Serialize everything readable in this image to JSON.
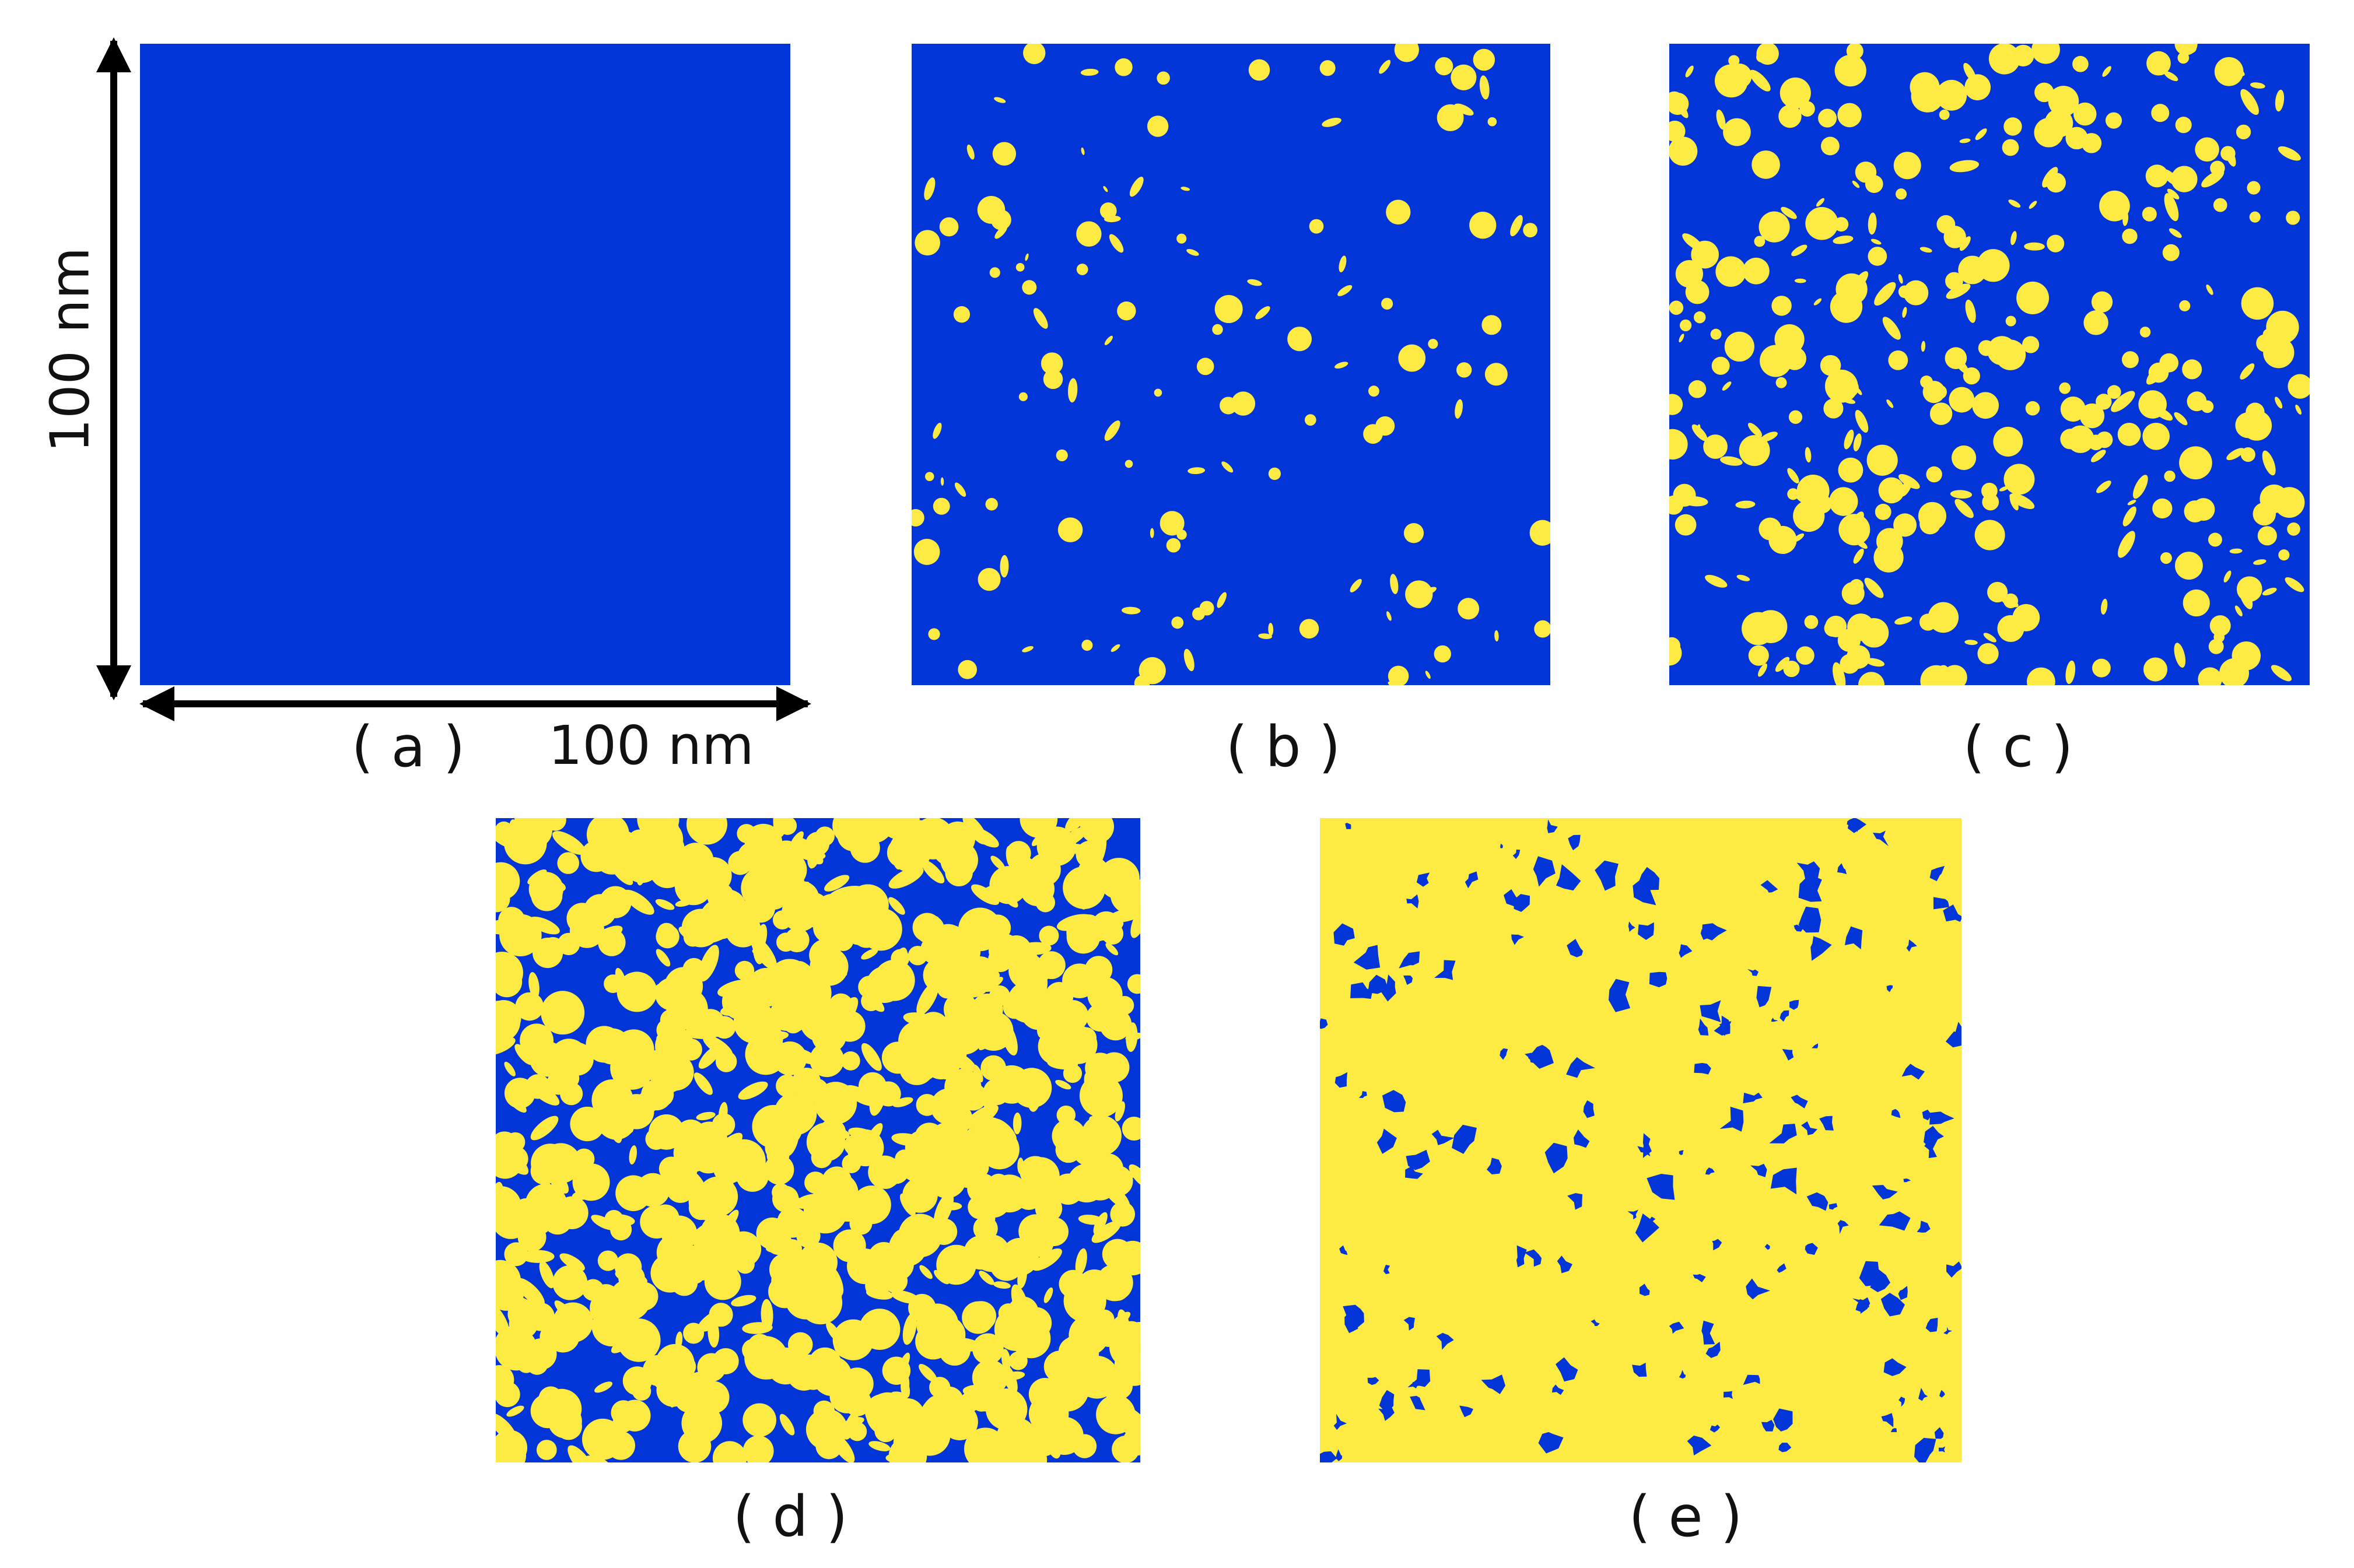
{
  "colors": {
    "background_phase": "#0235d8",
    "particle_phase": "#fdeb43"
  },
  "scale": {
    "vertical": "100 nm",
    "horizontal": "100 nm"
  },
  "panels": [
    {
      "label": "( a )",
      "particle_fraction": 0.0
    },
    {
      "label": "( b )",
      "particle_fraction": 0.08
    },
    {
      "label": "( c )",
      "particle_fraction": 0.25
    },
    {
      "label": "( d )",
      "particle_fraction": 0.6
    },
    {
      "label": "( e )",
      "particle_fraction": 0.92
    }
  ]
}
